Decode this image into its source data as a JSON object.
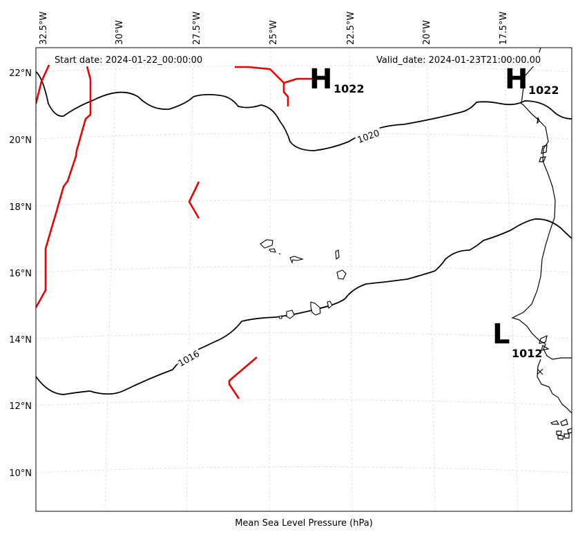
{
  "map": {
    "start_date": "Start date: 2024-01-22_00:00:00",
    "valid_date": "Valid_date: 2024-01-23T21:00:00.00",
    "caption": "Mean Sea Level Pressure (hPa)",
    "lon_labels": [
      "32.5°W",
      "30°W",
      "27.5°W",
      "25°W",
      "22.5°W",
      "20°W",
      "17.5°W"
    ],
    "lat_labels": [
      "22°N",
      "20°N",
      "18°N",
      "16°N",
      "14°N",
      "12°N",
      "10°N"
    ],
    "isobar_labels": [
      "1020",
      "1016"
    ],
    "highs": [
      {
        "symbol": "H",
        "value": "1022"
      },
      {
        "symbol": "H",
        "value": "1022"
      }
    ],
    "lows": [
      {
        "symbol": "L",
        "value": "1012"
      }
    ],
    "colors": {
      "isobar": "#000000",
      "front": "#ee0000",
      "grid": "#d9d9d9",
      "coast": "#000000"
    }
  }
}
